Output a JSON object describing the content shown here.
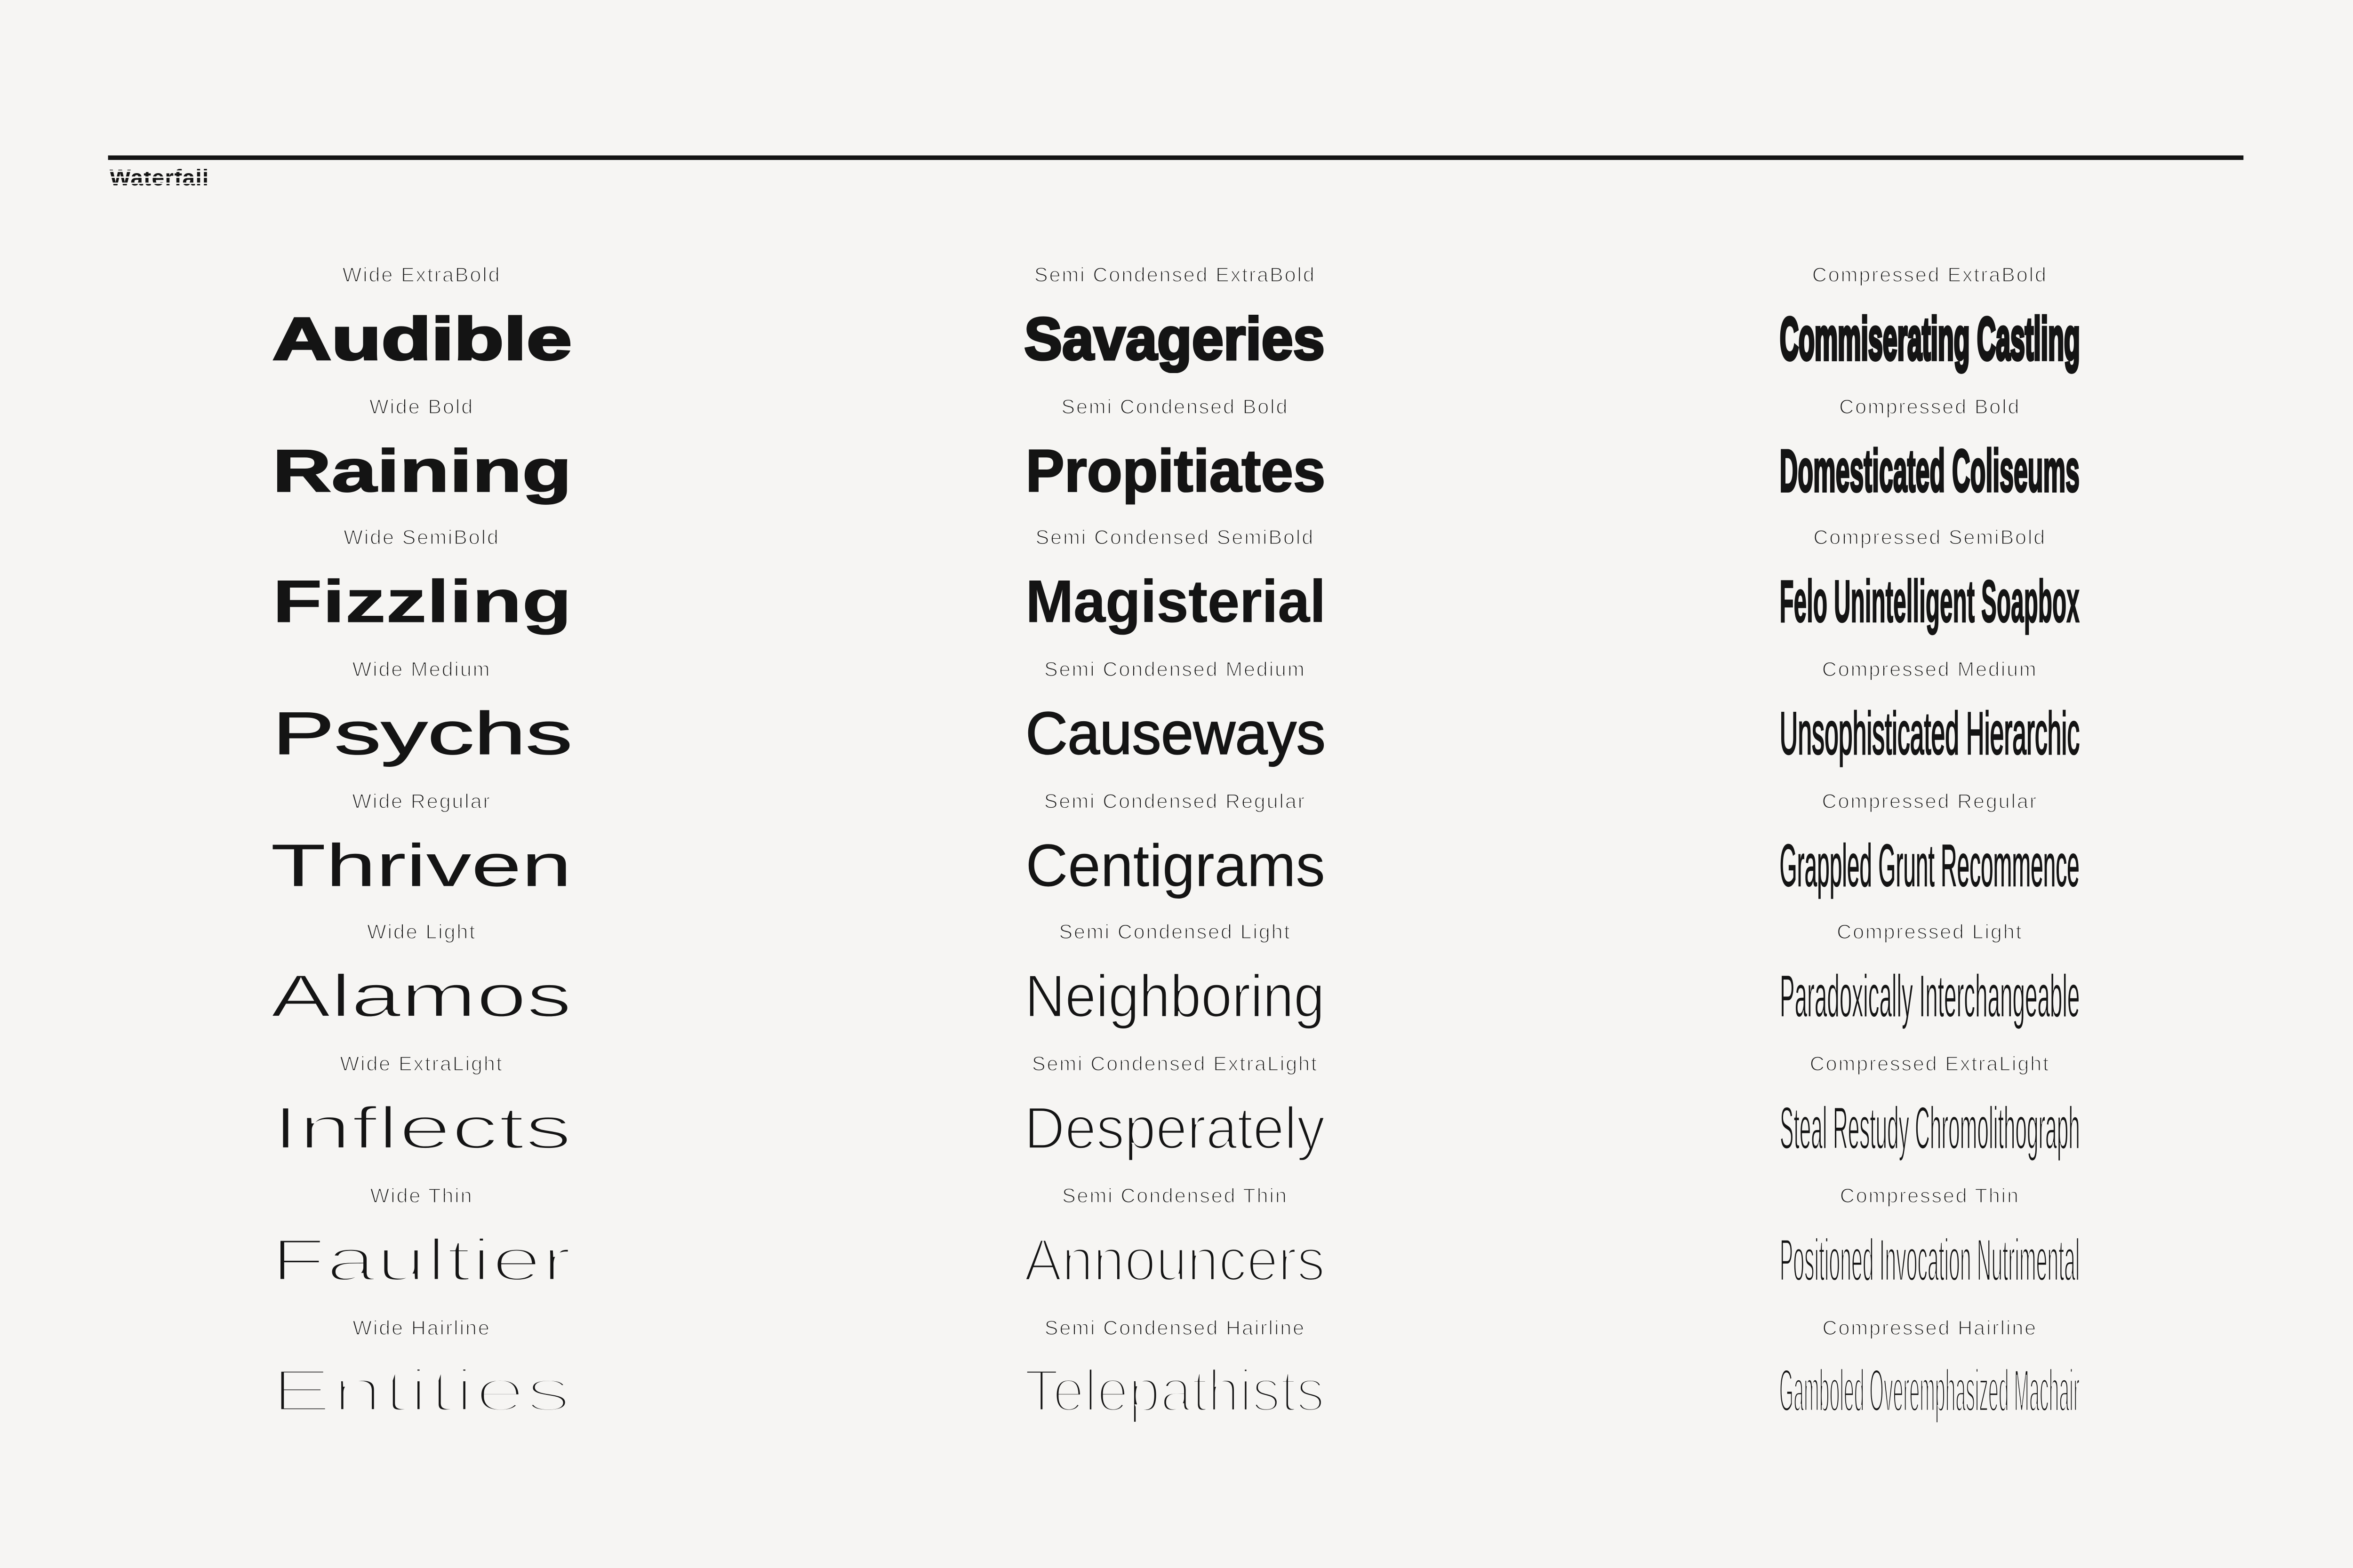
{
  "page": {
    "logo": "Waterfall",
    "background_color": "#f6f5f3",
    "ink_color": "#141414"
  },
  "columns": [
    {
      "name": "Wide",
      "rows": [
        {
          "label": "Wide ExtraBold",
          "weight": "ExtraBold",
          "word": "Audible"
        },
        {
          "label": "Wide Bold",
          "weight": "Bold",
          "word": "Raining"
        },
        {
          "label": "Wide SemiBold",
          "weight": "SemiBold",
          "word": "Fizzling"
        },
        {
          "label": "Wide Medium",
          "weight": "Medium",
          "word": "Psychs"
        },
        {
          "label": "Wide Regular",
          "weight": "Regular",
          "word": "Thriven"
        },
        {
          "label": "Wide Light",
          "weight": "Light",
          "word": "Alamos"
        },
        {
          "label": "Wide ExtraLight",
          "weight": "ExtraLight",
          "word": "Inflects"
        },
        {
          "label": "Wide Thin",
          "weight": "Thin",
          "word": "Faultier"
        },
        {
          "label": "Wide Hairline",
          "weight": "Hairline",
          "word": "Entities"
        }
      ]
    },
    {
      "name": "Semi Condensed",
      "rows": [
        {
          "label": "Semi Condensed ExtraBold",
          "weight": "ExtraBold",
          "word": "Savageries"
        },
        {
          "label": "Semi Condensed Bold",
          "weight": "Bold",
          "word": "Propitiates"
        },
        {
          "label": "Semi Condensed SemiBold",
          "weight": "SemiBold",
          "word": "Magisterial"
        },
        {
          "label": "Semi Condensed Medium",
          "weight": "Medium",
          "word": "Causeways"
        },
        {
          "label": "Semi Condensed Regular",
          "weight": "Regular",
          "word": "Centigrams"
        },
        {
          "label": "Semi Condensed Light",
          "weight": "Light",
          "word": "Neighboring"
        },
        {
          "label": "Semi Condensed ExtraLight",
          "weight": "ExtraLight",
          "word": "Desperately"
        },
        {
          "label": "Semi Condensed Thin",
          "weight": "Thin",
          "word": "Announcers"
        },
        {
          "label": "Semi Condensed Hairline",
          "weight": "Hairline",
          "word": "Telepathists"
        }
      ]
    },
    {
      "name": "Compressed",
      "rows": [
        {
          "label": "Compressed ExtraBold",
          "weight": "ExtraBold",
          "word": "Commiserating Castling"
        },
        {
          "label": "Compressed Bold",
          "weight": "Bold",
          "word": "Domesticated Coliseums"
        },
        {
          "label": "Compressed SemiBold",
          "weight": "SemiBold",
          "word": "Felo Unintelligent Soapbox"
        },
        {
          "label": "Compressed Medium",
          "weight": "Medium",
          "word": "Unsophisticated Hierarchic"
        },
        {
          "label": "Compressed Regular",
          "weight": "Regular",
          "word": "Grappled Grunt Recommence"
        },
        {
          "label": "Compressed Light",
          "weight": "Light",
          "word": "Paradoxically Interchangeable"
        },
        {
          "label": "Compressed ExtraLight",
          "weight": "ExtraLight",
          "word": "Steal Restudy Chromolithograph"
        },
        {
          "label": "Compressed Thin",
          "weight": "Thin",
          "word": "Positioned Invocation Nutrimental"
        },
        {
          "label": "Compressed Hairline",
          "weight": "Hairline",
          "word": "Gamboled Overemphasized Machair"
        }
      ]
    }
  ]
}
